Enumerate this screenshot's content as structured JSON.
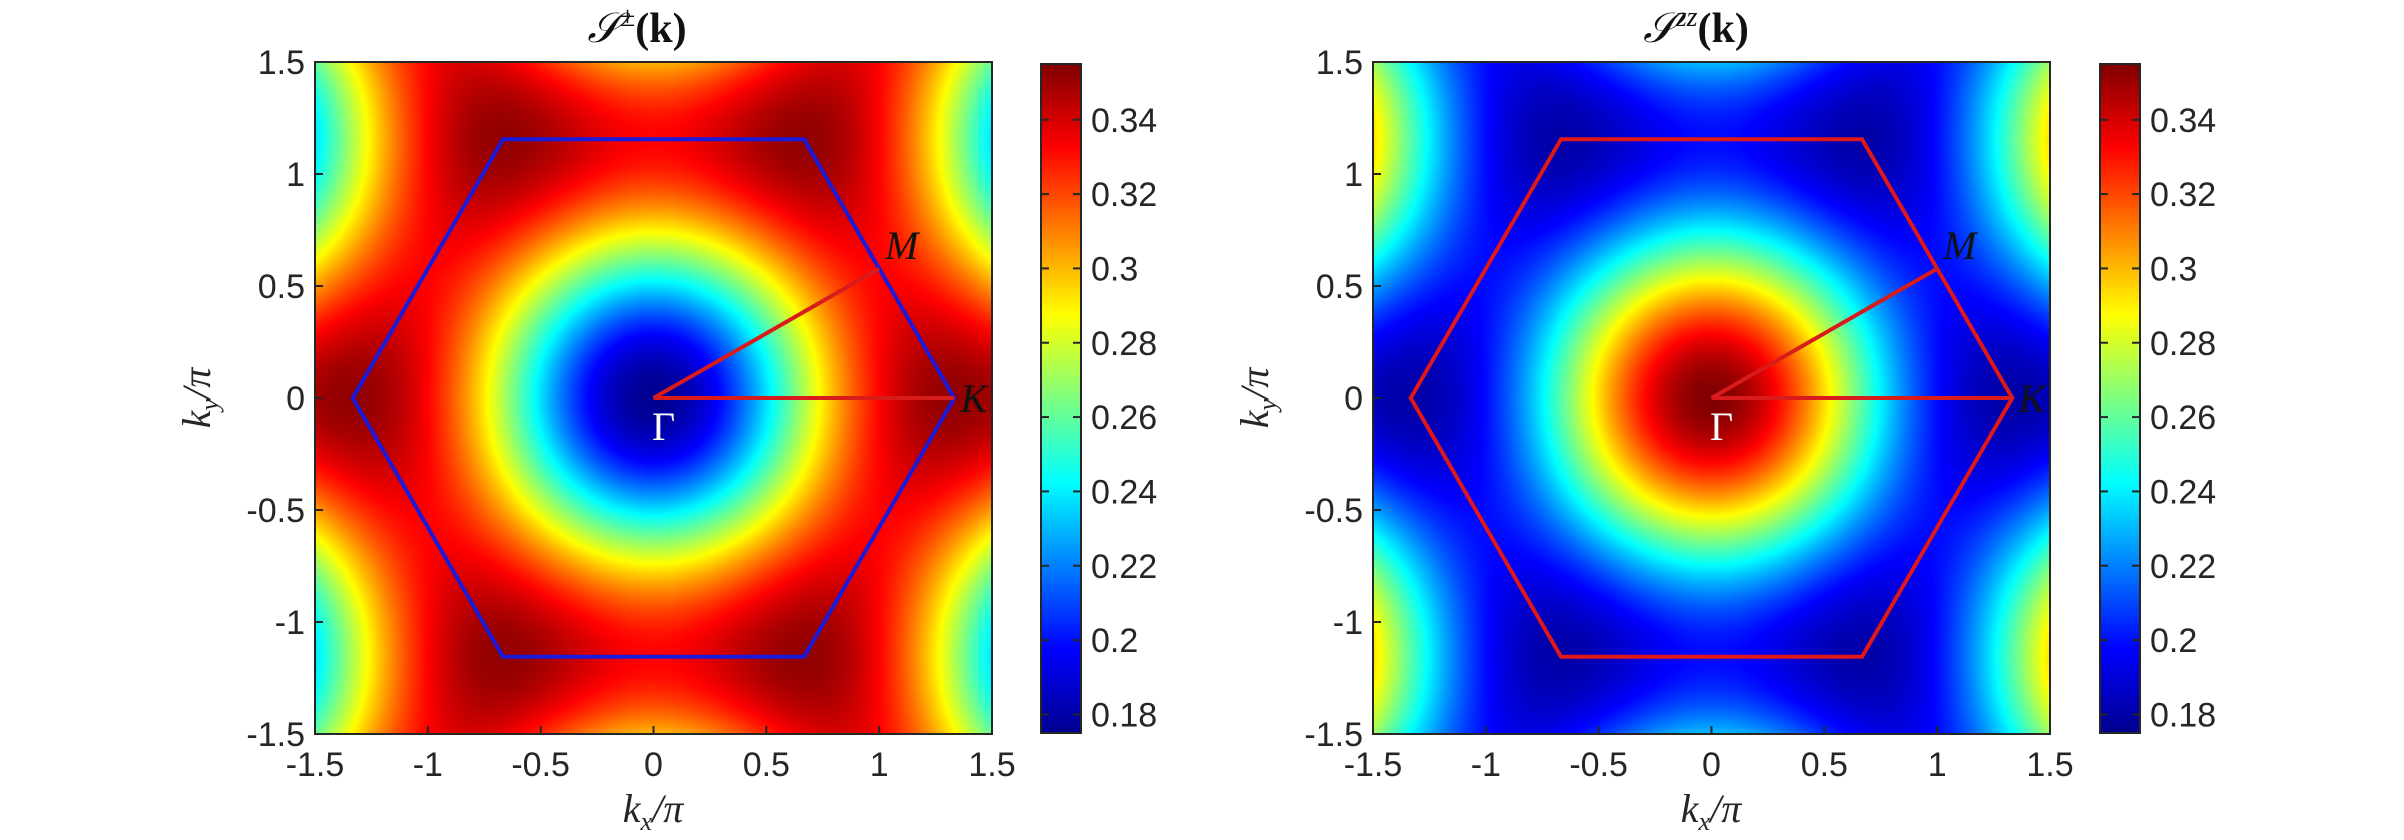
{
  "figure": {
    "panels": [
      {
        "id": "pm",
        "title_main": "𝒮",
        "title_sup": "±",
        "title_arg": "(k)",
        "xlabel_main": "k",
        "xlabel_sub": "x",
        "xlabel_tail": "/π",
        "ylabel_main": "k",
        "ylabel_sub": "y",
        "ylabel_tail": "/π",
        "hexagon_color": "#1a1adb",
        "path_color": "#d81b1b",
        "labels": {
          "gamma": "Γ",
          "m": "M",
          "k": "K"
        }
      },
      {
        "id": "zz",
        "title_main": "𝒮",
        "title_sup": "zz",
        "title_arg": "(k)",
        "xlabel_main": "k",
        "xlabel_sub": "x",
        "xlabel_tail": "/π",
        "ylabel_main": "k",
        "ylabel_sub": "y",
        "ylabel_tail": "/π",
        "hexagon_color": "#e01818",
        "path_color": "#d81b1b",
        "labels": {
          "gamma": "Γ",
          "m": "M",
          "k": "K"
        }
      }
    ]
  },
  "chart_data": [
    {
      "type": "heatmap",
      "title": "S^±(k)",
      "xlabel": "k_x/π",
      "ylabel": "k_y/π",
      "xlim": [
        -1.5,
        1.5
      ],
      "ylim": [
        -1.5,
        1.5
      ],
      "xticks": [
        "-1.5",
        "-1",
        "-0.5",
        "0",
        "0.5",
        "1",
        "1.5"
      ],
      "yticks": [
        "1.5",
        "1",
        "0.5",
        "0",
        "-0.5",
        "-1",
        "-1.5"
      ],
      "colormap": "jet",
      "clim": [
        0.175,
        0.355
      ],
      "colorbar_ticks": [
        "0.34",
        "0.32",
        "0.3",
        "0.28",
        "0.26",
        "0.24",
        "0.22",
        "0.2",
        "0.18"
      ],
      "field": {
        "center_value": 0.175,
        "corner_value": 0.352,
        "pattern": "minimum at Gamma, maxima at Brillouin-zone corners"
      },
      "brillouin_zone": [
        [
          1.333,
          0
        ],
        [
          0.667,
          1.155
        ],
        [
          -0.667,
          1.155
        ],
        [
          -1.333,
          0
        ],
        [
          -0.667,
          -1.155
        ],
        [
          0.667,
          -1.155
        ]
      ],
      "high_symmetry_points": [
        {
          "name": "Γ",
          "x": 0,
          "y": 0
        },
        {
          "name": "M",
          "x": 1.0,
          "y": 0.577
        },
        {
          "name": "K",
          "x": 1.333,
          "y": 0
        }
      ]
    },
    {
      "type": "heatmap",
      "title": "S^zz(k)",
      "xlabel": "k_x/π",
      "ylabel": "k_y/π",
      "xlim": [
        -1.5,
        1.5
      ],
      "ylim": [
        -1.5,
        1.5
      ],
      "xticks": [
        "-1.5",
        "-1",
        "-0.5",
        "0",
        "0.5",
        "1",
        "1.5"
      ],
      "yticks": [
        "1.5",
        "1",
        "0.5",
        "0",
        "-0.5",
        "-1",
        "-1.5"
      ],
      "colormap": "jet",
      "clim": [
        0.175,
        0.355
      ],
      "colorbar_ticks": [
        "0.34",
        "0.32",
        "0.3",
        "0.28",
        "0.26",
        "0.24",
        "0.22",
        "0.2",
        "0.18"
      ],
      "field": {
        "center_value": 0.355,
        "corner_value": 0.18,
        "pattern": "maximum at Gamma, minima at Brillouin-zone corners"
      },
      "brillouin_zone": [
        [
          1.333,
          0
        ],
        [
          0.667,
          1.155
        ],
        [
          -0.667,
          1.155
        ],
        [
          -1.333,
          0
        ],
        [
          -0.667,
          -1.155
        ],
        [
          0.667,
          -1.155
        ]
      ],
      "high_symmetry_points": [
        {
          "name": "Γ",
          "x": 0,
          "y": 0
        },
        {
          "name": "M",
          "x": 1.0,
          "y": 0.577
        },
        {
          "name": "K",
          "x": 1.333,
          "y": 0
        }
      ]
    }
  ]
}
